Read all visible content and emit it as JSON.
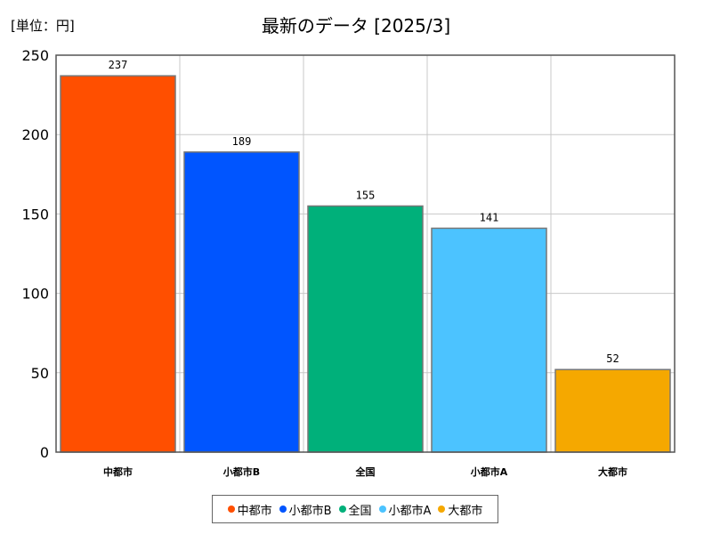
{
  "chart_data": {
    "type": "bar",
    "title": "最新のデータ [2025/3]",
    "unit_label": "[単位：円]",
    "categories": [
      "中都市",
      "小都市B",
      "全国",
      "小都市A",
      "大都市"
    ],
    "values": [
      237,
      189,
      155,
      141,
      52
    ],
    "colors": [
      "#ff4f00",
      "#0055ff",
      "#00b07a",
      "#4cc3ff",
      "#f5a800"
    ],
    "ylim": [
      0,
      250
    ],
    "yticks": [
      0,
      50,
      100,
      150,
      200,
      250
    ],
    "grid": true,
    "legend_position": "bottom"
  }
}
